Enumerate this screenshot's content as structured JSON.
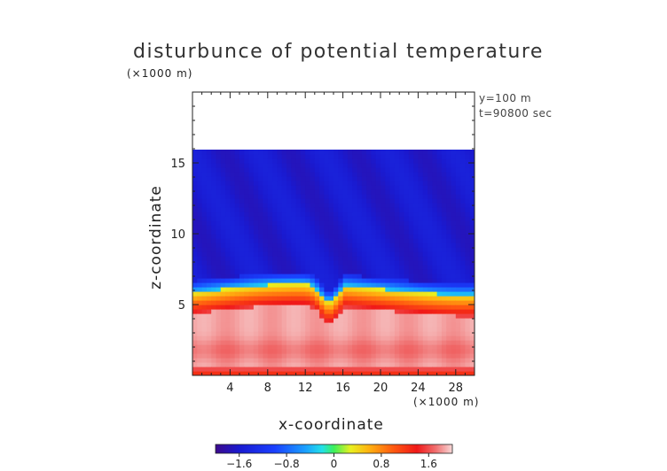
{
  "chart_data": {
    "type": "heatmap",
    "title": "disturbunce of potential temperature",
    "xlabel": "x-coordinate",
    "ylabel": "z-coordinate",
    "x_unit": "(×1000 m)",
    "y_unit": "(×1000 m)",
    "info": [
      "y=100 m",
      "t=90800 sec"
    ],
    "xlim": [
      0,
      30
    ],
    "ylim": [
      0,
      20
    ],
    "x_ticks": [
      4,
      8,
      12,
      16,
      20,
      24,
      28
    ],
    "y_ticks": [
      5,
      10,
      15
    ],
    "colorbar": {
      "range": [
        -2.0,
        2.0
      ],
      "tick_values": [
        -1.6,
        -0.8,
        0,
        0.8,
        1.6
      ],
      "tick_labels": [
        "−1.6",
        "−0.8",
        "0",
        "0.8",
        "1.6"
      ]
    },
    "field": {
      "description_layers": [
        {
          "z_range": [
            0,
            1.2
          ],
          "value": 1.2
        },
        {
          "z_range": [
            1.2,
            4.5
          ],
          "value": 1.8
        },
        {
          "z_range": [
            4.5,
            6.0
          ],
          "value": 0.9
        },
        {
          "z_range": [
            6.0,
            6.8
          ],
          "value": -0.6
        },
        {
          "z_range": [
            6.8,
            16.0
          ],
          "value": -1.6
        }
      ],
      "top_of_data_z": 16.0
    }
  }
}
